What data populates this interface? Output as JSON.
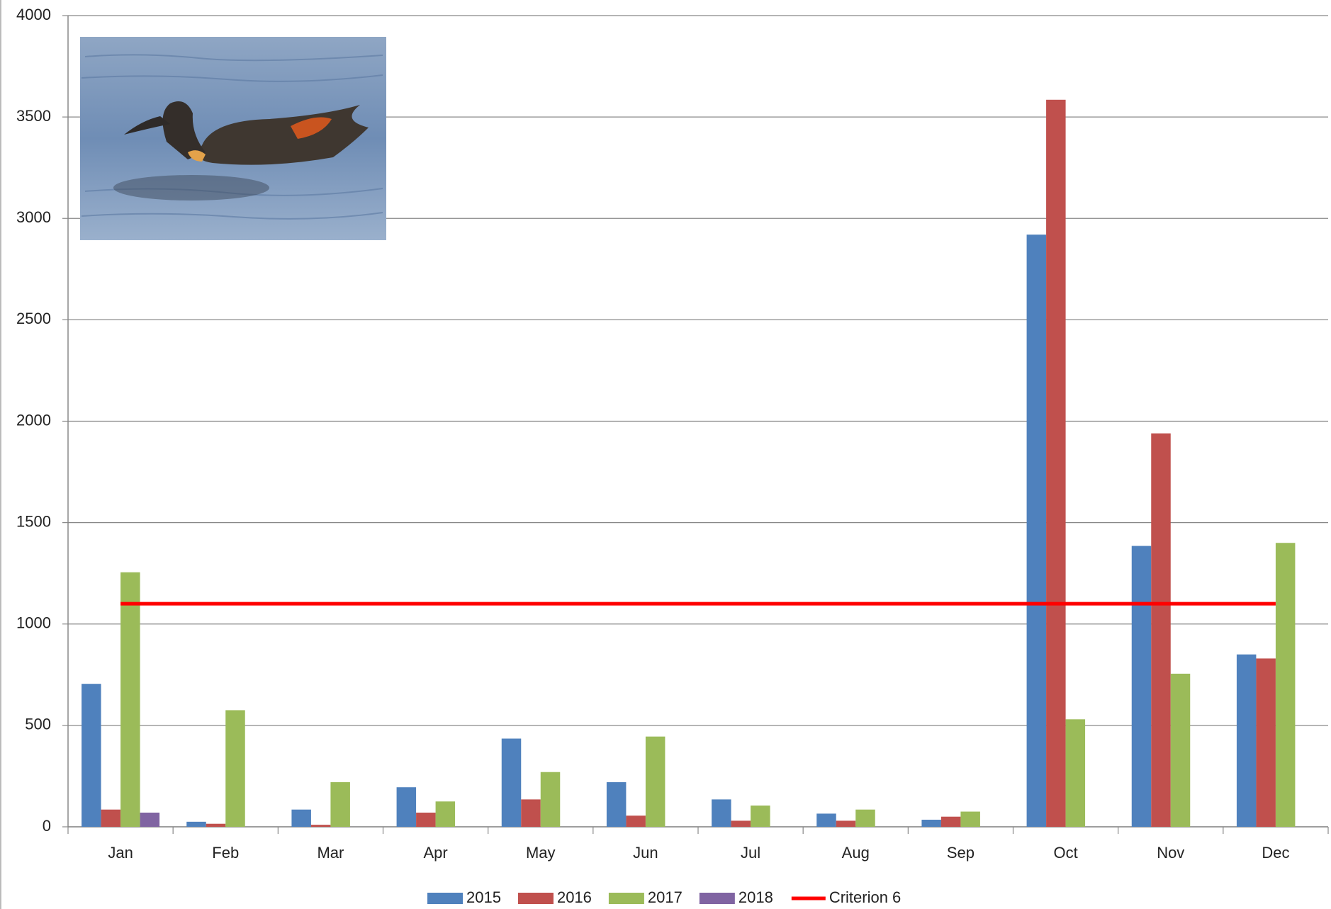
{
  "chart_data": {
    "type": "bar",
    "categories": [
      "Jan",
      "Feb",
      "Mar",
      "Apr",
      "May",
      "Jun",
      "Jul",
      "Aug",
      "Sep",
      "Oct",
      "Nov",
      "Dec"
    ],
    "series": [
      {
        "name": "2015",
        "color": "#4f81bd",
        "values": [
          705,
          25,
          85,
          195,
          435,
          220,
          135,
          65,
          35,
          2920,
          1385,
          850
        ]
      },
      {
        "name": "2016",
        "color": "#c0504d",
        "values": [
          85,
          15,
          10,
          70,
          135,
          55,
          30,
          30,
          50,
          3585,
          1940,
          830
        ]
      },
      {
        "name": "2017",
        "color": "#9bbb59",
        "values": [
          1255,
          575,
          220,
          125,
          270,
          445,
          105,
          85,
          75,
          530,
          755,
          1400
        ]
      },
      {
        "name": "2018",
        "color": "#8064a2",
        "values": [
          70,
          null,
          null,
          null,
          null,
          null,
          null,
          null,
          null,
          null,
          null,
          null
        ]
      },
      {
        "name": "Criterion 6",
        "color": "#ff0000",
        "type": "line",
        "values": [
          1100,
          1100,
          1100,
          1100,
          1100,
          1100,
          1100,
          1100,
          1100,
          1100,
          1100,
          1100
        ]
      }
    ],
    "ylim": [
      0,
      4000
    ],
    "yticks": [
      0,
      500,
      1000,
      1500,
      2000,
      2500,
      3000,
      3500,
      4000
    ],
    "grid": true,
    "legend": "bottom"
  }
}
